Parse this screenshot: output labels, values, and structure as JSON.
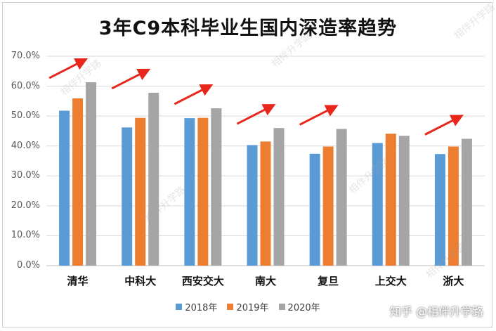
{
  "chart_data": {
    "type": "bar",
    "title": "3年C9本科毕业生国内深造率趋势",
    "categories": [
      "清华",
      "中科大",
      "西安交大",
      "南大",
      "复旦",
      "上交大",
      "浙大"
    ],
    "series": [
      {
        "name": "2018年",
        "color": "#5b9bd5",
        "values": [
          51.8,
          46.2,
          49.3,
          40.3,
          37.4,
          41.0,
          37.3
        ]
      },
      {
        "name": "2019年",
        "color": "#ed7d31",
        "values": [
          55.9,
          49.4,
          49.4,
          41.5,
          39.8,
          44.1,
          39.8
        ]
      },
      {
        "name": "2020年",
        "color": "#a5a5a5",
        "values": [
          61.3,
          57.8,
          52.6,
          46.0,
          45.7,
          43.4,
          42.4
        ]
      }
    ],
    "ylim": [
      0,
      70
    ],
    "yticks": [
      "0.0%",
      "10.0%",
      "20.0%",
      "30.0%",
      "40.0%",
      "50.0%",
      "60.0%",
      "70.0%"
    ],
    "grid": true,
    "legend_position": "bottom",
    "annotation_color": "#e8261c"
  },
  "watermarks": [
    "相伴升学路",
    "知乎 @相伴升学路"
  ]
}
